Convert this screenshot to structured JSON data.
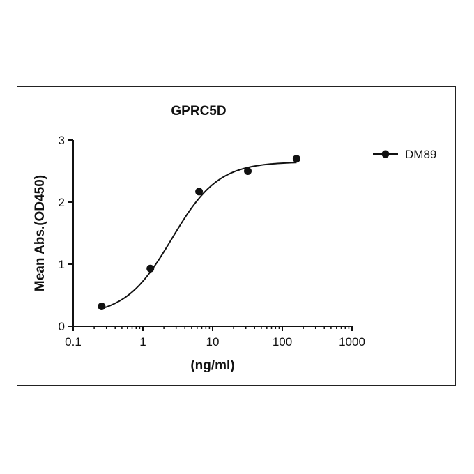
{
  "chart_data": {
    "type": "scatter",
    "title": "GPRC5D",
    "xlabel": "(ng/ml)",
    "ylabel": "Mean Abs.(OD450)",
    "x_scale": "log",
    "xlim": [
      0.1,
      1000
    ],
    "ylim": [
      0,
      3
    ],
    "x_ticks": [
      0.1,
      1,
      10,
      100,
      1000
    ],
    "x_tick_labels": [
      "0.1",
      "1",
      "10",
      "100",
      "1000"
    ],
    "y_ticks": [
      0,
      1,
      2,
      3
    ],
    "y_tick_labels": [
      "0",
      "1",
      "2",
      "3"
    ],
    "legend_position": "right",
    "grid": false,
    "series": [
      {
        "name": "DM89",
        "color": "#111111",
        "marker": "circle",
        "x": [
          0.256,
          1.28,
          6.4,
          32,
          160
        ],
        "y": [
          0.32,
          0.93,
          2.17,
          2.5,
          2.7
        ],
        "fit": {
          "model": "4PL",
          "bottom": 0.17,
          "top": 2.65,
          "ec50": 2.6,
          "hill": 1.3
        }
      }
    ]
  }
}
